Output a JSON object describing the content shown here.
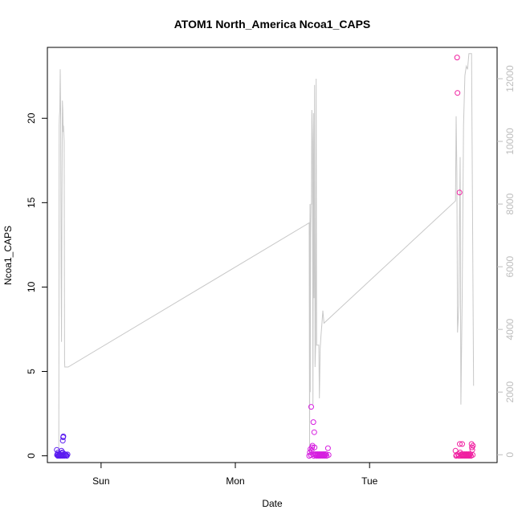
{
  "chart_data": {
    "type": "scatter",
    "title": "ATOM1 North_America Ncoa1_CAPS",
    "xlabel": "Date",
    "ylabel": "Ncoa1_CAPS",
    "x_ticks": [
      {
        "label": "Sun",
        "t": 1.0
      },
      {
        "label": "Mon",
        "t": 2.0
      },
      {
        "label": "Tue",
        "t": 3.0
      }
    ],
    "xlim": [
      0.6,
      3.95
    ],
    "ylim": [
      -0.4,
      24.2
    ],
    "y_ticks": [
      0,
      5,
      10,
      15,
      20
    ],
    "y2lim": [
      -250,
      13000
    ],
    "y2_ticks": [
      0,
      2000,
      4000,
      6000,
      8000,
      10000,
      12000
    ],
    "grid": false,
    "legend": "none",
    "line_color": "#c8c8c8",
    "line_series": {
      "t": [
        0.685,
        0.688,
        0.69,
        0.693,
        0.696,
        0.699,
        0.702,
        0.705,
        0.708,
        0.712,
        0.715,
        0.718,
        0.72,
        0.725,
        0.728,
        0.73,
        0.733,
        0.736,
        0.739,
        0.742,
        0.745,
        0.755,
        2.55,
        2.553,
        2.556,
        2.558,
        2.561,
        2.564,
        2.567,
        2.57,
        2.574,
        2.578,
        2.582,
        2.586,
        2.59,
        2.594,
        2.598,
        2.602,
        2.606,
        2.61,
        2.614,
        2.618,
        2.622,
        2.626,
        2.632,
        2.638,
        2.645,
        2.652,
        2.66,
        3.64,
        3.645,
        3.65,
        3.655,
        3.66,
        3.665,
        3.67,
        3.675,
        3.68,
        3.69,
        3.7,
        3.71,
        3.72,
        3.73,
        3.74,
        3.75,
        3.76,
        3.775
      ],
      "y2": [
        0,
        10500,
        10800,
        11000,
        12300,
        11000,
        5800,
        3600,
        8000,
        11300,
        11000,
        10300,
        10500,
        10000,
        3000,
        2800,
        2800,
        2800,
        2800,
        2800,
        2800,
        2800,
        7400,
        0,
        8000,
        2000,
        7000,
        8000,
        8000,
        11000,
        10000,
        1600,
        10900,
        5000,
        11800,
        2800,
        3500,
        12000,
        3500,
        3500,
        3500,
        3500,
        3500,
        1800,
        3400,
        3800,
        4200,
        4600,
        4200,
        8100,
        10800,
        9000,
        3900,
        4300,
        4800,
        7600,
        9500,
        1600,
        5000,
        10500,
        12100,
        12400,
        12300,
        12800,
        12800,
        12800,
        2200
      ]
    },
    "series": [
      {
        "color": "#5b1cf0",
        "points": [
          [
            0.67,
            0.35
          ],
          [
            0.672,
            0.05
          ],
          [
            0.675,
            0.1
          ],
          [
            0.678,
            0.0
          ],
          [
            0.68,
            0.2
          ],
          [
            0.683,
            0.02
          ],
          [
            0.686,
            0.05
          ],
          [
            0.69,
            0.0
          ],
          [
            0.693,
            0.1
          ],
          [
            0.697,
            0.0
          ],
          [
            0.7,
            0.05
          ],
          [
            0.703,
            0.15
          ],
          [
            0.705,
            0.3
          ],
          [
            0.708,
            0.05
          ],
          [
            0.71,
            0.0
          ],
          [
            0.713,
            0.2
          ],
          [
            0.715,
            0.9
          ],
          [
            0.717,
            1.1
          ],
          [
            0.719,
            1.15
          ],
          [
            0.721,
            0.05
          ],
          [
            0.725,
            0.0
          ],
          [
            0.73,
            0.1
          ],
          [
            0.735,
            0.02
          ],
          [
            0.74,
            0.05
          ],
          [
            0.745,
            0.0
          ],
          [
            0.75,
            0.08
          ]
        ]
      },
      {
        "color": "#d61ee0",
        "points": [
          [
            2.55,
            0.0
          ],
          [
            2.555,
            0.2
          ],
          [
            2.56,
            0.4
          ],
          [
            2.562,
            0.05
          ],
          [
            2.565,
            2.9
          ],
          [
            2.568,
            0.3
          ],
          [
            2.572,
            0.5
          ],
          [
            2.575,
            0.6
          ],
          [
            2.578,
            0.1
          ],
          [
            2.581,
            2.0
          ],
          [
            2.585,
            0.0
          ],
          [
            2.588,
            1.4
          ],
          [
            2.59,
            0.5
          ],
          [
            2.595,
            0.05
          ],
          [
            2.6,
            0.1
          ],
          [
            2.605,
            0.0
          ],
          [
            2.61,
            0.05
          ],
          [
            2.615,
            0.1
          ],
          [
            2.62,
            0.0
          ],
          [
            2.625,
            0.05
          ],
          [
            2.63,
            0.1
          ],
          [
            2.635,
            0.0
          ],
          [
            2.64,
            0.05
          ],
          [
            2.645,
            0.1
          ],
          [
            2.65,
            0.0
          ],
          [
            2.655,
            0.05
          ],
          [
            2.66,
            0.1
          ],
          [
            2.665,
            0.0
          ],
          [
            2.67,
            0.05
          ],
          [
            2.675,
            0.1
          ],
          [
            2.68,
            0.0
          ],
          [
            2.69,
            0.45
          ],
          [
            2.695,
            0.05
          ]
        ]
      },
      {
        "color": "#f01fa0",
        "points": [
          [
            3.64,
            0.3
          ],
          [
            3.645,
            0.0
          ],
          [
            3.648,
            0.05
          ],
          [
            3.652,
            23.6
          ],
          [
            3.655,
            21.5
          ],
          [
            3.66,
            0.1
          ],
          [
            3.665,
            0.0
          ],
          [
            3.67,
            15.6
          ],
          [
            3.672,
            0.7
          ],
          [
            3.675,
            0.2
          ],
          [
            3.68,
            0.0
          ],
          [
            3.683,
            0.05
          ],
          [
            3.686,
            0.1
          ],
          [
            3.69,
            0.7
          ],
          [
            3.695,
            0.0
          ],
          [
            3.7,
            0.05
          ],
          [
            3.705,
            0.1
          ],
          [
            3.71,
            0.0
          ],
          [
            3.715,
            0.05
          ],
          [
            3.72,
            0.1
          ],
          [
            3.725,
            0.0
          ],
          [
            3.73,
            0.05
          ],
          [
            3.735,
            0.1
          ],
          [
            3.74,
            0.0
          ],
          [
            3.745,
            0.05
          ],
          [
            3.75,
            0.1
          ],
          [
            3.755,
            0.0
          ],
          [
            3.76,
            0.7
          ],
          [
            3.762,
            0.5
          ],
          [
            3.765,
            0.35
          ],
          [
            3.768,
            0.05
          ],
          [
            3.77,
            0.6
          ]
        ]
      }
    ]
  }
}
